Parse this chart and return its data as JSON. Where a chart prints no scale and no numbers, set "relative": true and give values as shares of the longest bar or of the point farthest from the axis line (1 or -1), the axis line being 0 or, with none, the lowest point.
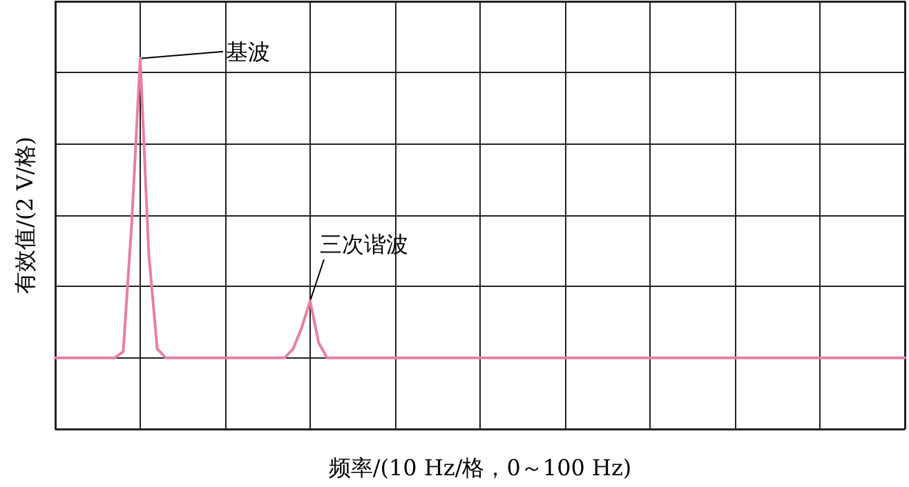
{
  "chart_data": {
    "type": "line",
    "relative": true,
    "xlabel": "频率/(10 Hz/格，0～100 Hz)",
    "ylabel": "有效值/(2 V/格)",
    "categories": [
      null,
      null,
      null,
      null,
      null,
      null,
      null,
      null,
      null,
      null,
      null,
      null,
      null,
      null,
      null,
      null,
      null,
      null,
      null,
      null,
      null,
      null,
      null,
      null,
      null,
      null,
      null,
      null,
      null,
      null,
      null,
      null,
      null,
      null,
      null,
      null,
      null,
      null,
      null,
      null,
      null,
      null,
      null,
      null,
      null,
      null,
      null,
      null,
      null,
      null,
      null,
      null,
      null,
      null,
      null,
      null,
      null,
      null,
      null,
      null,
      null,
      null,
      null,
      null,
      null,
      null,
      null,
      null,
      null,
      null,
      null,
      null,
      null,
      null,
      null,
      null,
      null,
      null,
      null,
      null,
      null,
      null,
      null,
      null,
      null,
      null,
      null,
      null,
      null,
      null,
      null,
      null,
      null,
      null,
      null,
      null,
      null,
      null,
      null,
      null,
      null
    ],
    "series": [
      {
        "color": "#e8809f",
        "values": [
          0,
          0,
          0,
          0,
          0,
          0,
          0,
          0,
          0.02,
          0.45,
          1,
          0.35,
          0.03,
          0,
          0,
          0,
          0,
          0,
          0,
          0,
          0,
          0,
          0,
          0,
          0,
          0,
          0,
          0,
          0.03,
          0.1,
          0.19,
          0.05,
          0,
          0,
          0,
          0,
          0,
          0,
          0,
          0,
          0,
          0,
          0,
          0,
          0,
          0,
          0,
          0,
          0,
          0,
          0,
          0,
          0,
          0,
          0,
          0,
          0,
          0,
          0,
          0,
          0,
          0,
          0,
          0,
          0,
          0,
          0,
          0,
          0,
          0,
          0,
          0,
          0,
          0,
          0,
          0,
          0,
          0,
          0,
          0,
          0,
          0,
          0,
          0,
          0,
          0,
          0,
          0,
          0,
          0,
          0,
          0,
          0,
          0,
          0,
          0,
          0,
          0,
          0,
          0,
          0
        ]
      }
    ],
    "annotations": [
      "基波",
      "三次谐波"
    ],
    "grid": true,
    "marker": "none",
    "line_style": "solid"
  }
}
